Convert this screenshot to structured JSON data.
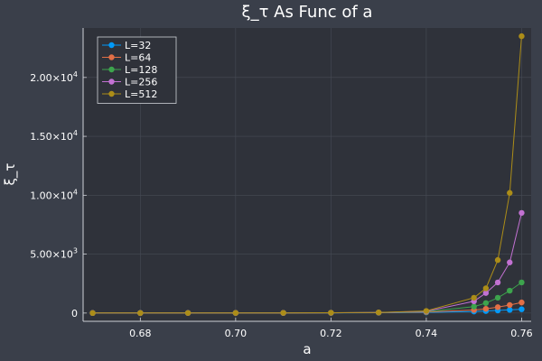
{
  "chart_data": {
    "type": "line",
    "title": "ξ_τ As Func of a",
    "xlabel": "a",
    "ylabel": "ξ_τ",
    "xlim": [
      0.668,
      0.762
    ],
    "ylim": [
      -700,
      24200
    ],
    "grid": true,
    "legend_position": "top-left",
    "x_ticks": [
      {
        "value": 0.68,
        "label": "0.68"
      },
      {
        "value": 0.7,
        "label": "0.70"
      },
      {
        "value": 0.72,
        "label": "0.72"
      },
      {
        "value": 0.74,
        "label": "0.74"
      },
      {
        "value": 0.76,
        "label": "0.76"
      }
    ],
    "y_ticks": [
      {
        "value": 0,
        "mantissa": "0",
        "exp": ""
      },
      {
        "value": 5000,
        "mantissa": "5.00×10",
        "exp": "3"
      },
      {
        "value": 10000,
        "mantissa": "1.00×10",
        "exp": "4"
      },
      {
        "value": 15000,
        "mantissa": "1.50×10",
        "exp": "4"
      },
      {
        "value": 20000,
        "mantissa": "2.00×10",
        "exp": "4"
      }
    ],
    "x": [
      0.67,
      0.68,
      0.69,
      0.7,
      0.71,
      0.72,
      0.73,
      0.74,
      0.75,
      0.7525,
      0.755,
      0.7575,
      0.76
    ],
    "series": [
      {
        "name": "L=32",
        "color": "#009af9",
        "values": [
          2,
          4,
          6,
          9,
          12,
          18,
          30,
          60,
          130,
          170,
          220,
          270,
          320
        ]
      },
      {
        "name": "L=64",
        "color": "#e26f46",
        "values": [
          2,
          4,
          6,
          9,
          13,
          20,
          35,
          80,
          260,
          360,
          500,
          680,
          900
        ]
      },
      {
        "name": "L=128",
        "color": "#3da44d",
        "values": [
          2,
          4,
          6,
          9,
          14,
          22,
          40,
          110,
          550,
          850,
          1300,
          1900,
          2600
        ]
      },
      {
        "name": "L=256",
        "color": "#c271d2",
        "values": [
          2,
          4,
          6,
          9,
          14,
          24,
          45,
          140,
          1000,
          1700,
          2600,
          4300,
          8500
        ]
      },
      {
        "name": "L=512",
        "color": "#ac8d18",
        "values": [
          2,
          4,
          6,
          9,
          15,
          25,
          50,
          180,
          1300,
          2100,
          4500,
          10200,
          23500
        ]
      }
    ]
  }
}
